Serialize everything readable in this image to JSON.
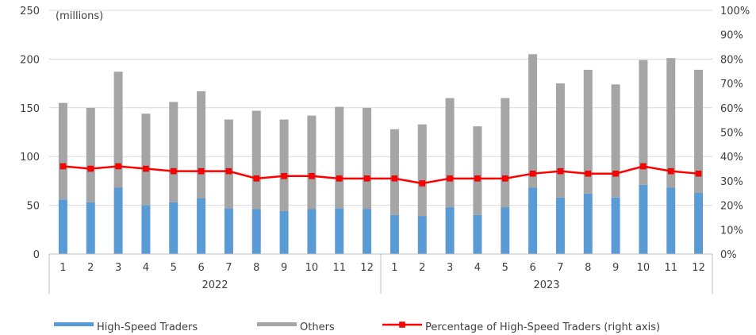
{
  "chart_data": {
    "type": "bar",
    "stacked": true,
    "unit_label": "(millions)",
    "years": [
      {
        "label": "2022",
        "months": [
          "1",
          "2",
          "3",
          "4",
          "5",
          "6",
          "7",
          "8",
          "9",
          "10",
          "11",
          "12"
        ]
      },
      {
        "label": "2023",
        "months": [
          "1",
          "2",
          "3",
          "4",
          "5",
          "6",
          "7",
          "8",
          "9",
          "10",
          "11",
          "12"
        ]
      }
    ],
    "series": [
      {
        "name": "High-Speed Traders",
        "kind": "bar",
        "axis": "left",
        "color": "#5b9bd5",
        "values": [
          56,
          53,
          68,
          50,
          53,
          57,
          47,
          46,
          44,
          46,
          47,
          46,
          40,
          39,
          48,
          40,
          48,
          68,
          58,
          62,
          58,
          71,
          68,
          63
        ]
      },
      {
        "name": "Others",
        "kind": "bar",
        "axis": "left",
        "color": "#a5a5a5",
        "values": [
          99,
          97,
          119,
          94,
          103,
          110,
          91,
          101,
          94,
          96,
          104,
          104,
          88,
          94,
          112,
          91,
          112,
          137,
          117,
          127,
          116,
          128,
          133,
          126
        ]
      },
      {
        "name": "Percentage of High-Speed Traders (right axis)",
        "kind": "line",
        "axis": "right",
        "color": "#ff0000",
        "values": [
          0.36,
          0.35,
          0.36,
          0.35,
          0.34,
          0.34,
          0.34,
          0.31,
          0.32,
          0.32,
          0.31,
          0.31,
          0.31,
          0.29,
          0.31,
          0.31,
          0.31,
          0.33,
          0.34,
          0.33,
          0.33,
          0.36,
          0.34,
          0.33
        ]
      }
    ],
    "y_left": {
      "min": 0,
      "max": 250,
      "ticks": [
        "0",
        "50",
        "100",
        "150",
        "200",
        "250"
      ]
    },
    "y_right": {
      "min": 0,
      "max": 1,
      "ticks": [
        "0%",
        "10%",
        "20%",
        "30%",
        "40%",
        "50%",
        "60%",
        "70%",
        "80%",
        "90%",
        "100%"
      ]
    },
    "grid": true,
    "legend_position": "bottom"
  }
}
